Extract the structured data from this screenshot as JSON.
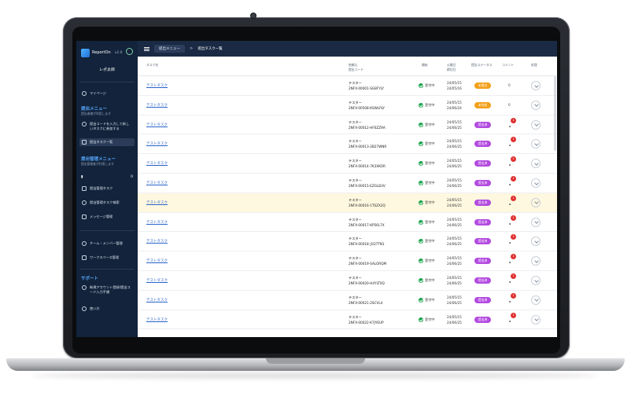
{
  "app": {
    "name": "ReportOn",
    "version": "v2.0",
    "user": "レポ太郎"
  },
  "header": {
    "crumb": "提出メニュー",
    "sep": ">",
    "current": "提出タスク一覧"
  },
  "sidebar": {
    "mypage": "マイページ",
    "submit_menu_title": "提出メニュー",
    "submit_menu_sub": "提出者様が利用します",
    "submit_code": "提出コードを入力して新しいタスクに参加する",
    "submit_list": "提出タスク一覧",
    "manage_menu_title": "提出管理メニュー",
    "manage_menu_sub": "提出管理者が利用します",
    "doc_count": "0",
    "manage_task": "提出管理タスク",
    "manage_search": "提出管理タスク検索",
    "message": "メッセージ管理",
    "team": "チーム・メンバー管理",
    "workspace": "ワークスペース管理",
    "support_title": "サポート",
    "signup": "新規アカウント登録/提出コード入力手順",
    "howto": "使い方"
  },
  "table": {
    "headers": {
      "task": "タスク名",
      "sender1": "依頼元",
      "sender2": "提出コード",
      "status": "開始",
      "dates1": "公開日",
      "dates2": "締切日",
      "submit_status": "提出ステータス",
      "comment": "コメント",
      "action": "処理"
    },
    "rows": [
      {
        "task": "テストタスク",
        "sender": "テスター",
        "code": "2NFX-00001-SG8FYLY",
        "status": "受付中",
        "d1": "24/05/15",
        "d2": "24/05/16",
        "badge": "未提出",
        "kind": "unsub",
        "comment": "0"
      },
      {
        "task": "テストタスク",
        "sender": "テスター",
        "code": "2NFX-00508-KSWLPLY",
        "status": "受付中",
        "d1": "24/05/15",
        "d2": "24/06/24",
        "badge": "未完成",
        "kind": "unsub",
        "comment": "0"
      },
      {
        "task": "テストタスク",
        "sender": "テスター",
        "code": "2NFX-00012-HF6ZZ9A",
        "status": "受付中",
        "d1": "24/05/15",
        "d2": "24/06/25",
        "badge": "提出済",
        "kind": "sub",
        "comment": "1"
      },
      {
        "task": "テストタスク",
        "sender": "テスター",
        "code": "2NFX-00013-2B27WNR",
        "status": "受付中",
        "d1": "24/05/15",
        "d2": "24/06/25",
        "badge": "提出済",
        "kind": "sub",
        "comment": "1"
      },
      {
        "task": "テストタスク",
        "sender": "テスター",
        "code": "2NFX-00014-7K3XKOR",
        "status": "受付中",
        "d1": "24/05/15",
        "d2": "24/06/25",
        "badge": "提出済",
        "kind": "sub",
        "comment": "1"
      },
      {
        "task": "テストタスク",
        "sender": "テスター",
        "code": "2NFX-00015-EZGLB3V",
        "status": "受付中",
        "d1": "24/05/15",
        "d2": "24/06/25",
        "badge": "提出済",
        "kind": "sub",
        "comment": "1"
      },
      {
        "task": "テストタスク",
        "sender": "テスター",
        "code": "2NFX-00016-1T6ZX2Q",
        "status": "受付中",
        "d1": "24/05/15",
        "d2": "24/06/25",
        "badge": "提出済",
        "kind": "sub",
        "comment": "1"
      },
      {
        "task": "テストタスク",
        "sender": "テスター",
        "code": "2NFX-00017-KP56L7X",
        "status": "受付中",
        "d1": "24/05/15",
        "d2": "24/06/25",
        "badge": "提出済",
        "kind": "sub",
        "comment": "1"
      },
      {
        "task": "テストタスク",
        "sender": "テスター",
        "code": "2NFX-00018-J1D7TN1",
        "status": "受付中",
        "d1": "24/05/15",
        "d2": "24/06/25",
        "badge": "提出済",
        "kind": "sub",
        "comment": "1"
      },
      {
        "task": "テストタスク",
        "sender": "テスター",
        "code": "2NFX-00019-SALORQM",
        "status": "受付中",
        "d1": "24/05/15",
        "d2": "24/06/25",
        "badge": "提出済",
        "kind": "sub",
        "comment": "1"
      },
      {
        "task": "テストタスク",
        "sender": "テスター",
        "code": "2NFX-00020-H4YLT0Q",
        "status": "受付中",
        "d1": "24/05/15",
        "d2": "24/06/25",
        "badge": "提出済",
        "kind": "sub",
        "comment": "1"
      },
      {
        "task": "テストタスク",
        "sender": "テスター",
        "code": "2NFX-00021-2SCVL4",
        "status": "受付中",
        "d1": "24/05/15",
        "d2": "24/06/25",
        "badge": "提出済",
        "kind": "sub",
        "comment": "1"
      },
      {
        "task": "テストタスク",
        "sender": "テスター",
        "code": "2NFX-00022-K7JYEUP",
        "status": "受付中",
        "d1": "24/05/15",
        "d2": "24/06/25",
        "badge": "提出済",
        "kind": "sub",
        "comment": "1"
      }
    ]
  }
}
